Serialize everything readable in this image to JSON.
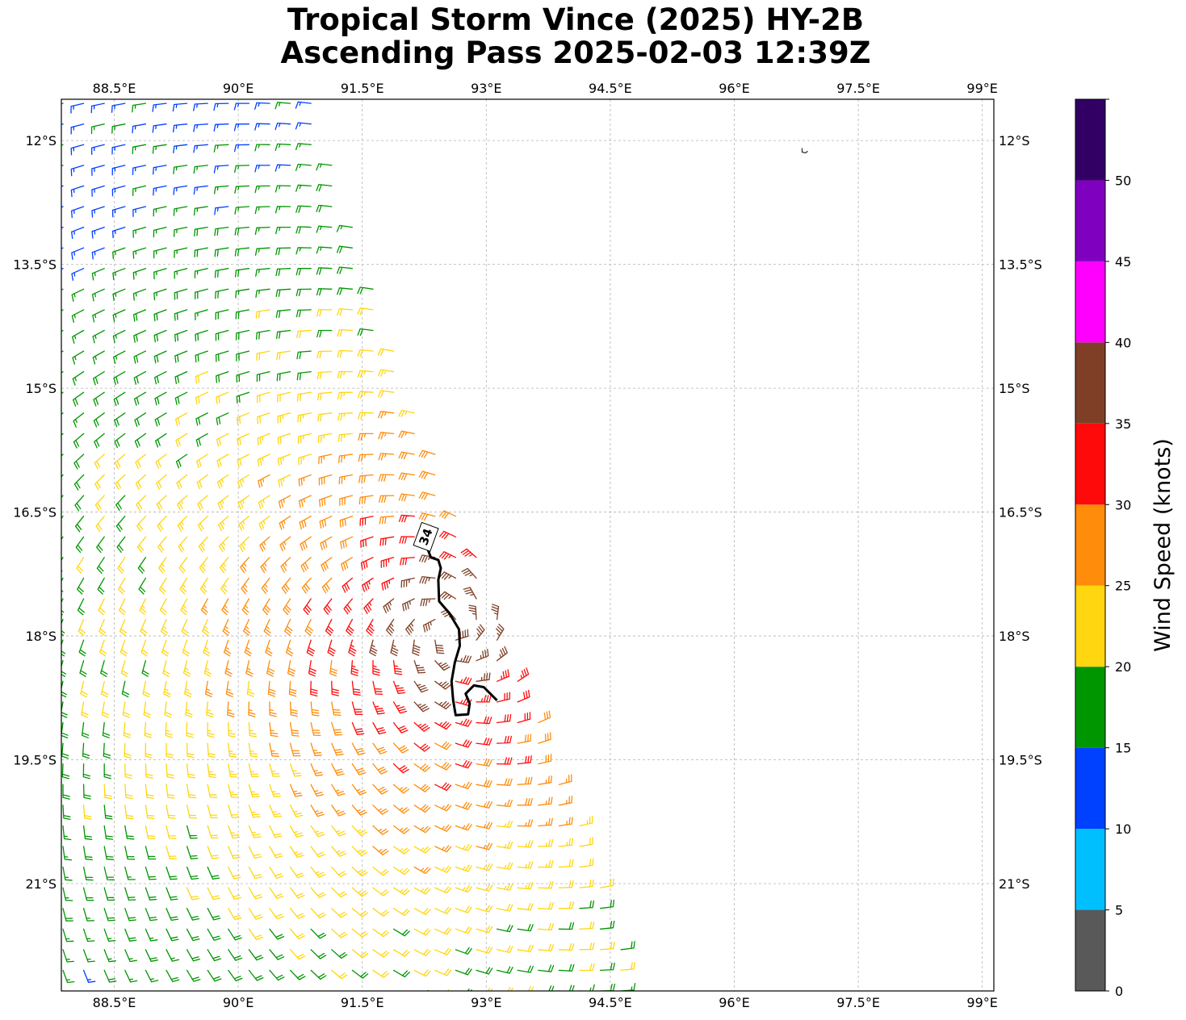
{
  "chart_data": {
    "type": "wind_barb_map",
    "title": "Tropical Storm Vince (2025) HY-2B",
    "subtitle": "Ascending Pass 2025-02-03 12:39Z",
    "x_axis": {
      "label": "",
      "range": [
        87.86,
        99.14
      ],
      "ticks": [
        88.5,
        90,
        91.5,
        93,
        94.5,
        96,
        97.5,
        99
      ],
      "tick_labels": [
        "88.5°E",
        "90°E",
        "91.5°E",
        "93°E",
        "94.5°E",
        "96°E",
        "97.5°E",
        "99°E"
      ]
    },
    "y_axis": {
      "label": "",
      "range": [
        -22.3,
        -11.5
      ],
      "ticks": [
        -12,
        -13.5,
        -15,
        -16.5,
        -18,
        -19.5,
        -21
      ],
      "tick_labels": [
        "12°S",
        "13.5°S",
        "15°S",
        "16.5°S",
        "18°S",
        "19.5°S",
        "21°S"
      ]
    },
    "grid": true,
    "colorbar": {
      "label": "Wind Speed (knots)",
      "bounds": [
        0,
        5,
        10,
        15,
        20,
        25,
        30,
        35,
        40,
        45,
        50,
        55
      ],
      "tick_labels": [
        "0",
        "5",
        "10",
        "15",
        "20",
        "25",
        "30",
        "35",
        "40",
        "45",
        "50"
      ],
      "colors": [
        "#595959",
        "#00bfff",
        "#0040ff",
        "#009600",
        "#ffd60f",
        "#ff8c0a",
        "#ff0a0a",
        "#7f3f26",
        "#ff00ff",
        "#8000bf",
        "#320064"
      ]
    },
    "contour": {
      "level": "34",
      "path": [
        [
          92.28,
          -16.92
        ],
        [
          92.33,
          -17.05
        ],
        [
          92.42,
          -17.08
        ],
        [
          92.45,
          -17.18
        ],
        [
          92.42,
          -17.32
        ],
        [
          92.43,
          -17.58
        ],
        [
          92.55,
          -17.72
        ],
        [
          92.67,
          -17.92
        ],
        [
          92.68,
          -18.12
        ],
        [
          92.62,
          -18.32
        ],
        [
          92.58,
          -18.55
        ],
        [
          92.6,
          -18.78
        ],
        [
          92.63,
          -18.96
        ],
        [
          92.78,
          -18.95
        ],
        [
          92.8,
          -18.82
        ],
        [
          92.75,
          -18.7
        ],
        [
          92.85,
          -18.6
        ],
        [
          92.97,
          -18.62
        ],
        [
          93.05,
          -18.7
        ],
        [
          93.13,
          -18.78
        ]
      ],
      "label_position": [
        92.27,
        -16.8
      ]
    },
    "swath": {
      "west_edge_lon": 87.86,
      "east_edge": [
        [
          -11.5,
          90.9
        ],
        [
          -15.3,
          92.2
        ],
        [
          -17.6,
          93.1
        ],
        [
          -19.2,
          93.7
        ],
        [
          -20.2,
          94.1
        ],
        [
          -22.3,
          94.85
        ]
      ]
    },
    "wind_field": {
      "center": [
        92.55,
        -17.95
      ],
      "speed_knots_by_radius_deg": [
        [
          0.3,
          37
        ],
        [
          0.8,
          35
        ],
        [
          1.3,
          31
        ],
        [
          2.0,
          28
        ],
        [
          2.8,
          24
        ],
        [
          3.6,
          21
        ],
        [
          4.5,
          19
        ],
        [
          5.5,
          17
        ],
        [
          6.5,
          14
        ]
      ],
      "barb_spacing_deg": 0.25
    },
    "map_features": [
      {
        "type": "island",
        "lon": 96.85,
        "lat": -12.13
      }
    ]
  }
}
